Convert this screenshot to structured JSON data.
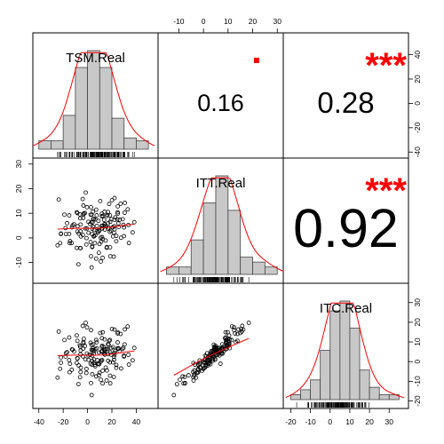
{
  "chart_data": {
    "type": "scatter-matrix",
    "variables": [
      "TSM.Real",
      "ITT.Real",
      "ITC.Real"
    ],
    "colors": {
      "fit_line": "#ff0000",
      "stars": "#ff0000",
      "hist_fill": "#c8c8c8",
      "points": "#000000",
      "frame": "#000000"
    },
    "axes": {
      "TSM.Real": {
        "range": [
          -42,
          55
        ],
        "ticks": [
          -40,
          -20,
          0,
          20,
          40
        ],
        "tick_labels": [
          "-40",
          "-20",
          "0",
          "20",
          "40"
        ]
      },
      "ITT.Real": {
        "range": [
          -17,
          31
        ],
        "ticks": [
          -10,
          0,
          10,
          20,
          30
        ],
        "tick_labels": [
          "-10",
          "0",
          "10",
          "20",
          "30"
        ]
      },
      "ITC.Real": {
        "range": [
          -22,
          38
        ],
        "ticks": [
          -20,
          -10,
          0,
          10,
          20,
          30
        ],
        "tick_labels": [
          "-20",
          "-10",
          "0",
          "10",
          "20",
          "30"
        ]
      }
    },
    "correlations": [
      {
        "row": 0,
        "col": 1,
        "vars": [
          "TSM.Real",
          "ITT.Real"
        ],
        "value": "0.16",
        "stars": "."
      },
      {
        "row": 0,
        "col": 2,
        "vars": [
          "TSM.Real",
          "ITC.Real"
        ],
        "value": "0.28",
        "stars": "***"
      },
      {
        "row": 1,
        "col": 2,
        "vars": [
          "ITT.Real",
          "ITC.Real"
        ],
        "value": "0.92",
        "stars": "***"
      }
    ],
    "histograms": [
      {
        "var": "TSM.Real",
        "breaks": [
          -40,
          -30,
          -20,
          -10,
          0,
          10,
          20,
          30,
          40,
          50
        ],
        "counts": [
          3,
          3,
          12,
          29,
          35,
          29,
          11,
          4,
          3
        ]
      },
      {
        "var": "ITT.Real",
        "breaks": [
          -15,
          -10,
          -5,
          0,
          5,
          10,
          15,
          20,
          25,
          30
        ],
        "counts": [
          3,
          3,
          14,
          29,
          40,
          26,
          7,
          5,
          3
        ]
      },
      {
        "var": "ITC.Real",
        "breaks": [
          -20,
          -15,
          -10,
          -5,
          0,
          5,
          10,
          15,
          20,
          25,
          30,
          35
        ],
        "counts": [
          2,
          4,
          8,
          20,
          36,
          40,
          29,
          12,
          5,
          2,
          2
        ]
      }
    ]
  }
}
